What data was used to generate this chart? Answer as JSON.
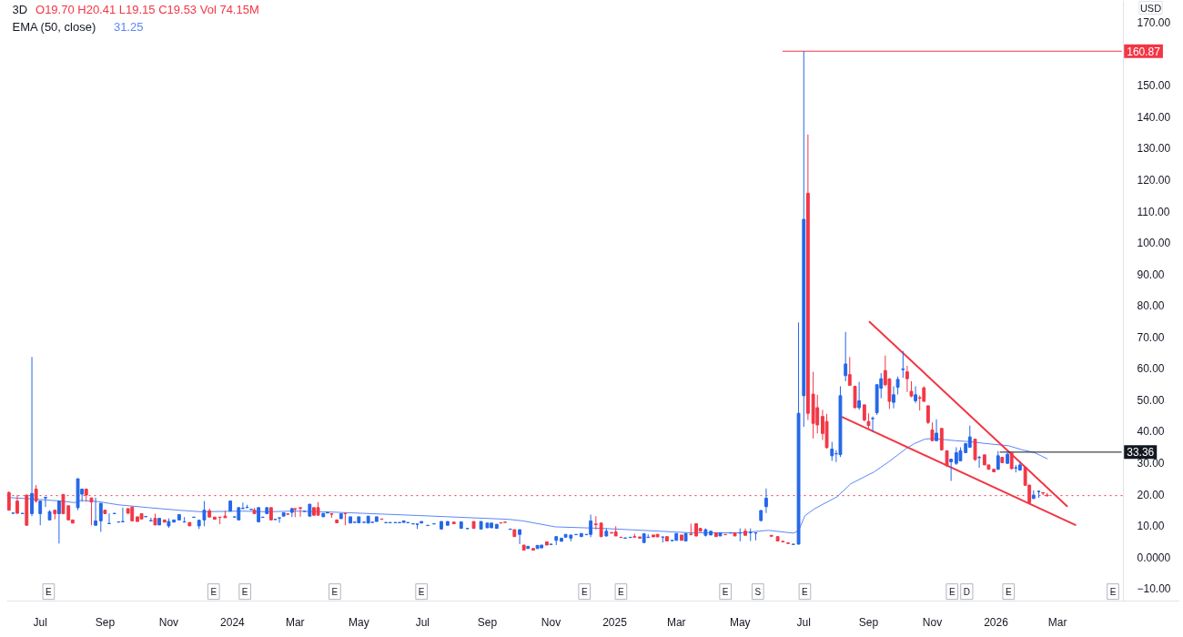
{
  "chart_data": {
    "type": "candlestick",
    "title": "3D",
    "subtitle": "O19.70 H20.41 L19.15 C19.53 Vol 74.15M",
    "ylabel": "USD",
    "legend": "top left",
    "xlim": [
      "2023-05-30",
      "2026-06-26"
    ],
    "ylim": [
      -14,
      177
    ],
    "xticks": [
      {
        "value": "2023-07-01",
        "label": "Jul"
      },
      {
        "value": "2023-09-01",
        "label": "Sep"
      },
      {
        "value": "2023-11-01",
        "label": "Nov"
      },
      {
        "value": "2024-01-01",
        "label": "2024"
      },
      {
        "value": "2024-03-01",
        "label": "Mar"
      },
      {
        "value": "2024-05-01",
        "label": "May"
      },
      {
        "value": "2024-07-01",
        "label": "Jul"
      },
      {
        "value": "2024-09-01",
        "label": "Sep"
      },
      {
        "value": "2024-11-01",
        "label": "Nov"
      },
      {
        "value": "2025-01-01",
        "label": "2025"
      },
      {
        "value": "2025-03-01",
        "label": "Mar"
      },
      {
        "value": "2025-05-01",
        "label": "May"
      },
      {
        "value": "2025-07-01",
        "label": "Jul"
      },
      {
        "value": "2025-09-01",
        "label": "Sep"
      },
      {
        "value": "2025-11-01",
        "label": "Nov"
      },
      {
        "value": "2026-01-01",
        "label": "2026"
      },
      {
        "value": "2026-03-01",
        "label": "Mar"
      }
    ],
    "yticks": [
      {
        "value": -10,
        "label": "−10.00"
      },
      {
        "value": 0,
        "label": "0.0000"
      },
      {
        "value": 10,
        "label": "10.00"
      },
      {
        "value": 20,
        "label": "20.00"
      },
      {
        "value": 30,
        "label": "30.00"
      },
      {
        "value": 40,
        "label": "40.00"
      },
      {
        "value": 50,
        "label": "50.00"
      },
      {
        "value": 60,
        "label": "60.00"
      },
      {
        "value": 70,
        "label": "70.00"
      },
      {
        "value": 80,
        "label": "80.00"
      },
      {
        "value": 90,
        "label": "90.00"
      },
      {
        "value": 100,
        "label": "100.00"
      },
      {
        "value": 110,
        "label": "110.00"
      },
      {
        "value": 120,
        "label": "120.00"
      },
      {
        "value": 130,
        "label": "130.00"
      },
      {
        "value": 140,
        "label": "140.00"
      },
      {
        "value": 150,
        "label": "150.00"
      },
      {
        "value": 170,
        "label": "170.00"
      }
    ],
    "x": [
      "2023-06-01",
      "2023-06-05",
      "2023-06-09",
      "2023-06-14",
      "2023-06-18",
      "2023-06-23",
      "2023-06-27",
      "2023-07-01",
      "2023-07-06",
      "2023-07-10",
      "2023-07-15",
      "2023-07-19",
      "2023-07-23",
      "2023-07-28",
      "2023-08-01",
      "2023-08-06",
      "2023-08-10",
      "2023-08-14",
      "2023-08-19",
      "2023-08-23",
      "2023-08-28",
      "2023-09-01",
      "2023-09-05",
      "2023-09-10",
      "2023-09-14",
      "2023-09-18",
      "2023-09-23",
      "2023-09-27",
      "2023-10-02",
      "2023-10-06",
      "2023-10-10",
      "2023-10-15",
      "2023-10-19",
      "2023-10-23",
      "2023-10-28",
      "2023-11-01",
      "2023-11-06",
      "2023-11-11",
      "2023-11-16",
      "2023-11-21",
      "2023-11-25",
      "2023-11-30",
      "2023-12-05",
      "2023-12-10",
      "2023-12-15",
      "2023-12-20",
      "2023-12-25",
      "2023-12-30",
      "2024-01-03",
      "2024-01-07",
      "2024-01-11",
      "2024-01-15",
      "2024-01-19",
      "2024-01-22",
      "2024-01-26",
      "2024-01-30",
      "2024-02-03",
      "2024-02-07",
      "2024-02-11",
      "2024-02-15",
      "2024-02-19",
      "2024-02-23",
      "2024-02-27",
      "2024-03-01",
      "2024-03-06",
      "2024-03-10",
      "2024-03-15",
      "2024-03-19",
      "2024-03-23",
      "2024-03-28",
      "2024-04-01",
      "2024-04-05",
      "2024-04-10",
      "2024-04-14",
      "2024-04-18",
      "2024-04-23",
      "2024-04-27",
      "2024-05-01",
      "2024-05-06",
      "2024-05-10",
      "2024-05-14",
      "2024-05-18",
      "2024-05-23",
      "2024-05-27",
      "2024-05-31",
      "2024-06-05",
      "2024-06-09",
      "2024-06-13",
      "2024-06-17",
      "2024-06-22",
      "2024-06-26",
      "2024-06-30",
      "2024-07-06",
      "2024-07-12",
      "2024-07-19",
      "2024-07-25",
      "2024-07-31",
      "2024-08-07",
      "2024-08-13",
      "2024-08-19",
      "2024-08-26",
      "2024-09-01",
      "2024-09-05",
      "2024-09-10",
      "2024-09-14",
      "2024-09-18",
      "2024-09-23",
      "2024-09-27",
      "2024-10-02",
      "2024-10-06",
      "2024-10-10",
      "2024-10-15",
      "2024-10-19",
      "2024-10-23",
      "2024-10-28",
      "2024-11-01",
      "2024-11-06",
      "2024-11-11",
      "2024-11-15",
      "2024-11-20",
      "2024-11-25",
      "2024-11-30",
      "2024-12-05",
      "2024-12-09",
      "2024-12-14",
      "2024-12-19",
      "2024-12-24",
      "2024-12-29",
      "2025-01-02",
      "2025-01-07",
      "2025-01-11",
      "2025-01-16",
      "2025-01-20",
      "2025-01-25",
      "2025-01-29",
      "2025-02-02",
      "2025-02-07",
      "2025-02-11",
      "2025-02-16",
      "2025-02-20",
      "2025-02-25",
      "2025-03-01",
      "2025-03-06",
      "2025-03-10",
      "2025-03-15",
      "2025-03-20",
      "2025-03-24",
      "2025-03-29",
      "2025-04-03",
      "2025-04-08",
      "2025-04-12",
      "2025-04-17",
      "2025-04-22",
      "2025-04-26",
      "2025-05-01",
      "2025-05-06",
      "2025-05-11",
      "2025-05-16",
      "2025-05-21",
      "2025-05-26",
      "2025-05-31",
      "2025-06-06",
      "2025-06-11",
      "2025-06-16",
      "2025-06-21",
      "2025-06-26",
      "2025-07-01",
      "2025-07-05",
      "2025-07-10",
      "2025-07-14",
      "2025-07-19",
      "2025-07-23",
      "2025-07-28",
      "2025-08-01",
      "2025-08-05",
      "2025-08-10",
      "2025-08-14",
      "2025-08-19",
      "2025-08-23",
      "2025-08-28",
      "2025-09-01",
      "2025-09-05",
      "2025-09-09",
      "2025-09-13",
      "2025-09-17",
      "2025-09-21",
      "2025-09-25",
      "2025-09-29",
      "2025-10-04",
      "2025-10-08",
      "2025-10-12",
      "2025-10-16",
      "2025-10-20",
      "2025-10-24",
      "2025-10-28",
      "2025-11-01",
      "2025-11-05",
      "2025-11-10",
      "2025-11-15",
      "2025-11-19",
      "2025-11-24",
      "2025-11-28",
      "2025-12-03",
      "2025-12-07",
      "2025-12-12",
      "2025-12-16",
      "2025-12-21",
      "2025-12-25",
      "2025-12-30",
      "2026-01-03",
      "2026-01-07",
      "2026-01-12",
      "2026-01-16",
      "2026-01-20",
      "2026-01-24",
      "2026-01-29",
      "2026-02-02",
      "2026-02-06",
      "2026-02-11",
      "2026-02-15",
      "2026-02-19"
    ],
    "ohlc": [
      [
        20.5,
        20.9,
        14.9,
        14.9
      ],
      [
        13.9,
        14.0,
        13.8,
        14.0
      ],
      [
        17.8,
        19.7,
        13.9,
        13.9
      ],
      [
        13.8,
        14.0,
        13.8,
        13.9
      ],
      [
        19.7,
        19.8,
        10.1,
        10.1
      ],
      [
        13.8,
        63.6,
        13.0,
        20.2
      ],
      [
        21.6,
        22.9,
        17.3,
        17.8
      ],
      [
        13.8,
        17.8,
        10.1,
        17.8
      ],
      [
        18.8,
        19.0,
        15.9,
        19.0
      ],
      [
        11.8,
        14.9,
        11.8,
        14.4
      ],
      [
        14.9,
        14.9,
        12.0,
        13.8
      ],
      [
        13.8,
        17.8,
        4.3,
        17.8
      ],
      [
        19.9,
        19.9,
        13.8,
        13.8
      ],
      [
        16.3,
        16.3,
        11.8,
        11.8
      ],
      [
        11.8,
        11.8,
        10.8,
        10.8
      ],
      [
        15.7,
        24.9,
        14.9,
        24.9
      ],
      [
        20.0,
        21.6,
        17.6,
        21.6
      ],
      [
        21.6,
        21.6,
        17.6,
        19.7
      ],
      [
        18.8,
        18.8,
        10.1,
        17.5
      ],
      [
        10.1,
        18.9,
        10.1,
        11.5
      ],
      [
        11.5,
        17.1,
        8.0,
        17.1
      ],
      [
        14.9,
        14.9,
        13.8,
        13.8
      ],
      [
        10.6,
        13.9,
        10.6,
        10.7
      ],
      [
        13.8,
        13.9,
        13.8,
        13.9
      ],
      [
        11.1,
        11.2,
        11.1,
        11.2
      ],
      [
        11.2,
        15.7,
        11.2,
        11.3
      ],
      [
        15.4,
        15.4,
        13.9,
        13.9
      ],
      [
        15.9,
        15.9,
        11.5,
        11.5
      ],
      [
        12.8,
        12.8,
        11.3,
        11.3
      ],
      [
        13.8,
        13.8,
        12.1,
        12.1
      ],
      [
        12.8,
        12.9,
        12.8,
        12.9
      ],
      [
        11.5,
        12.5,
        11.5,
        11.6
      ],
      [
        12.3,
        13.8,
        10.2,
        10.2
      ],
      [
        10.2,
        12.3,
        10.2,
        12.3
      ],
      [
        11.8,
        11.8,
        11.1,
        11.1
      ],
      [
        9.9,
        12.3,
        9.3,
        11.3
      ],
      [
        11.1,
        11.8,
        11.1,
        11.8
      ],
      [
        11.8,
        13.5,
        11.8,
        13.5
      ],
      [
        11.1,
        12.7,
        11.1,
        11.2
      ],
      [
        11.0,
        11.0,
        9.9,
        9.9
      ],
      [
        12.6,
        12.7,
        12.6,
        12.7
      ],
      [
        9.9,
        11.7,
        8.9,
        11.7
      ],
      [
        11.8,
        17.8,
        9.8,
        14.9
      ],
      [
        14.7,
        15.4,
        12.7,
        12.7
      ],
      [
        12.7,
        12.7,
        12.0,
        12.0
      ],
      [
        12.7,
        12.7,
        10.4,
        12.6
      ],
      [
        13.0,
        14.7,
        12.5,
        12.5
      ],
      [
        14.6,
        17.8,
        14.6,
        17.8
      ],
      [
        12.7,
        12.8,
        12.7,
        12.8
      ],
      [
        11.8,
        15.7,
        11.8,
        15.7
      ],
      [
        15.4,
        17.3,
        15.4,
        15.5
      ],
      [
        15.7,
        16.6,
        15.7,
        15.8
      ],
      [
        15.1,
        15.2,
        15.1,
        15.2
      ],
      [
        14.9,
        15.6,
        13.8,
        13.8
      ],
      [
        11.2,
        15.7,
        11.2,
        15.7
      ],
      [
        12.6,
        12.7,
        12.6,
        12.7
      ],
      [
        13.8,
        15.7,
        13.8,
        15.7
      ],
      [
        15.7,
        15.7,
        11.8,
        11.8
      ],
      [
        11.9,
        12.0,
        11.9,
        12.0
      ],
      [
        12.4,
        12.5,
        10.9,
        12.5
      ],
      [
        13.0,
        14.1,
        13.0,
        14.1
      ],
      [
        13.7,
        13.7,
        13.6,
        13.6
      ],
      [
        14.2,
        15.7,
        12.7,
        15.4
      ],
      [
        15.4,
        15.4,
        12.7,
        15.2
      ],
      [
        15.7,
        15.7,
        12.8,
        15.5
      ],
      [
        14.5,
        14.6,
        14.5,
        14.6
      ],
      [
        13.0,
        16.8,
        13.0,
        16.8
      ],
      [
        15.7,
        15.7,
        13.3,
        13.3
      ],
      [
        15.7,
        17.5,
        13.3,
        13.3
      ],
      [
        12.8,
        13.9,
        12.8,
        13.9
      ],
      [
        14.0,
        14.2,
        14.0,
        14.2
      ],
      [
        13.8,
        13.8,
        12.5,
        13.6
      ],
      [
        11.8,
        11.8,
        10.9,
        10.9
      ],
      [
        12.2,
        13.8,
        12.2,
        13.8
      ],
      [
        13.9,
        13.9,
        10.1,
        13.8
      ],
      [
        10.8,
        12.8,
        10.8,
        12.8
      ],
      [
        11.0,
        11.1,
        11.0,
        11.1
      ],
      [
        10.9,
        12.8,
        10.9,
        12.8
      ],
      [
        11.0,
        11.1,
        11.0,
        11.1
      ],
      [
        10.8,
        13.0,
        10.8,
        13.0
      ],
      [
        11.0,
        11.1,
        11.0,
        11.1
      ],
      [
        11.3,
        12.8,
        11.3,
        12.8
      ],
      [
        12.1,
        12.1,
        12.0,
        12.0
      ],
      [
        10.9,
        11.0,
        10.9,
        11.0
      ],
      [
        10.9,
        11.0,
        10.9,
        11.0
      ],
      [
        10.9,
        11.0,
        10.9,
        11.0
      ],
      [
        10.9,
        11.0,
        10.9,
        11.0
      ],
      [
        11.0,
        11.5,
        11.0,
        11.5
      ],
      [
        10.9,
        11.0,
        10.9,
        11.0
      ],
      [
        10.5,
        10.6,
        10.5,
        10.6
      ],
      [
        10.4,
        10.5,
        8.9,
        10.5
      ],
      [
        10.8,
        11.3,
        10.8,
        11.3
      ],
      [
        10.0,
        10.1,
        10.0,
        10.1
      ],
      [
        10.5,
        10.6,
        10.5,
        10.6
      ],
      [
        8.9,
        11.3,
        8.9,
        11.3
      ],
      [
        10.1,
        11.3,
        10.1,
        11.3
      ],
      [
        11.1,
        11.1,
        10.6,
        10.6
      ],
      [
        9.1,
        11.2,
        9.1,
        11.2
      ],
      [
        9.0,
        9.1,
        9.0,
        9.1
      ],
      [
        11.3,
        11.3,
        9.1,
        9.1
      ],
      [
        8.9,
        11.3,
        8.9,
        11.3
      ],
      [
        9.3,
        10.8,
        9.3,
        10.8
      ],
      [
        9.3,
        10.8,
        9.3,
        10.8
      ],
      [
        9.1,
        10.4,
        9.1,
        10.4
      ],
      [
        10.9,
        10.9,
        10.8,
        10.8
      ],
      [
        11.1,
        11.1,
        11.0,
        11.0
      ],
      [
        8.8,
        8.9,
        8.8,
        8.9
      ],
      [
        8.7,
        8.7,
        6.5,
        6.5
      ],
      [
        7.2,
        8.7,
        4.1,
        8.7
      ],
      [
        3.8,
        3.8,
        2.2,
        2.2
      ],
      [
        2.7,
        3.4,
        2.7,
        3.4
      ],
      [
        2.7,
        2.7,
        2.2,
        2.2
      ],
      [
        2.7,
        3.7,
        2.7,
        3.7
      ],
      [
        2.9,
        3.8,
        2.9,
        3.8
      ],
      [
        4.8,
        4.8,
        3.8,
        3.8
      ],
      [
        4.0,
        4.1,
        4.0,
        4.1
      ],
      [
        5.3,
        6.5,
        3.8,
        6.5
      ],
      [
        5.0,
        6.0,
        5.0,
        6.0
      ],
      [
        6.3,
        7.2,
        6.3,
        7.2
      ],
      [
        6.0,
        7.0,
        5.0,
        7.0
      ],
      [
        7.1,
        7.2,
        7.1,
        7.2
      ],
      [
        6.5,
        7.5,
        6.5,
        7.5
      ],
      [
        7.1,
        7.2,
        7.1,
        7.2
      ],
      [
        7.2,
        13.5,
        6.3,
        11.5
      ],
      [
        10.5,
        13.0,
        8.7,
        10.3
      ],
      [
        10.8,
        10.8,
        6.3,
        6.5
      ],
      [
        6.7,
        9.1,
        6.5,
        8.2
      ],
      [
        7.8,
        7.8,
        7.6,
        7.6
      ],
      [
        8.0,
        9.8,
        6.7,
        6.7
      ],
      [
        6.3,
        6.3,
        6.2,
        6.2
      ],
      [
        6.0,
        6.1,
        6.0,
        6.1
      ],
      [
        6.2,
        6.3,
        6.2,
        6.3
      ],
      [
        6.5,
        7.4,
        6.3,
        6.3
      ],
      [
        6.4,
        6.4,
        6.0,
        6.0
      ],
      [
        4.6,
        7.4,
        4.6,
        7.4
      ],
      [
        6.2,
        7.2,
        6.2,
        6.3
      ],
      [
        7.0,
        7.0,
        6.4,
        6.4
      ],
      [
        7.2,
        7.2,
        6.4,
        6.4
      ],
      [
        6.3,
        6.4,
        4.6,
        6.4
      ],
      [
        6.5,
        6.5,
        5.1,
        5.1
      ],
      [
        5.2,
        5.3,
        5.2,
        5.3
      ],
      [
        5.3,
        7.5,
        5.3,
        7.5
      ],
      [
        7.0,
        7.0,
        5.3,
        5.3
      ],
      [
        5.1,
        7.5,
        5.1,
        7.5
      ],
      [
        7.3,
        10.6,
        7.1,
        7.1
      ],
      [
        10.6,
        10.6,
        6.5,
        6.7
      ],
      [
        9.1,
        9.1,
        8.2,
        8.2
      ],
      [
        6.9,
        9.1,
        6.5,
        8.7
      ],
      [
        7.0,
        8.2,
        7.0,
        8.2
      ],
      [
        7.7,
        7.7,
        6.5,
        6.5
      ],
      [
        6.7,
        7.7,
        6.7,
        7.7
      ],
      [
        7.2,
        7.2,
        7.1,
        7.1
      ],
      [
        7.6,
        7.7,
        7.6,
        7.7
      ],
      [
        7.7,
        7.7,
        6.7,
        6.7
      ],
      [
        7.6,
        9.1,
        5.0,
        7.7
      ],
      [
        8.2,
        9.1,
        6.9,
        6.9
      ],
      [
        7.7,
        9.1,
        5.1,
        7.8
      ],
      [
        7.6,
        7.7,
        5.3,
        7.7
      ],
      [
        11.6,
        14.9,
        11.3,
        14.8
      ],
      [
        16.0,
        21.8,
        14.0,
        18.7
      ],
      [
        6.9,
        6.9,
        6.6,
        6.6
      ],
      [
        6.5,
        6.5,
        5.1,
        5.1
      ],
      [
        5.0,
        5.0,
        4.8,
        4.8
      ],
      [
        4.5,
        4.5,
        4.3,
        4.3
      ],
      [
        4.0,
        4.1,
        4.0,
        4.1
      ],
      [
        4.1,
        74.6,
        4.0,
        45.7
      ],
      [
        51.3,
        160.87,
        41.4,
        107.4
      ],
      [
        115.7,
        134.4,
        43.6,
        45.7
      ],
      [
        51.8,
        58.9,
        37.7,
        42.5
      ],
      [
        47.5,
        51.6,
        39.3,
        42.0
      ],
      [
        44.7,
        46.8,
        37.2,
        39.3
      ],
      [
        43.1,
        45.5,
        34.5,
        34.8
      ],
      [
        32.2,
        36.6,
        30.6,
        34.3
      ],
      [
        32.8,
        34.0,
        30.2,
        32.9
      ],
      [
        32.6,
        54.3,
        31.8,
        51.3
      ],
      [
        57.7,
        71.6,
        55.9,
        61.4
      ],
      [
        58.0,
        63.6,
        54.6,
        54.6
      ],
      [
        54.3,
        54.3,
        47.3,
        47.5
      ],
      [
        47.5,
        55.7,
        46.8,
        49.7
      ],
      [
        48.4,
        48.4,
        43.1,
        43.6
      ],
      [
        43.1,
        45.7,
        40.9,
        41.8
      ],
      [
        44.0,
        44.7,
        39.8,
        44.1
      ],
      [
        45.9,
        54.8,
        45.2,
        54.8
      ],
      [
        53.7,
        58.5,
        50.5,
        56.7
      ],
      [
        59.3,
        64.1,
        54.3,
        54.8
      ],
      [
        56.6,
        56.9,
        47.1,
        49.5
      ],
      [
        49.2,
        54.3,
        47.3,
        51.6
      ],
      [
        54.0,
        57.4,
        51.7,
        56.5
      ],
      [
        59.6,
        65.5,
        57.0,
        59.8
      ],
      [
        58.9,
        60.8,
        52.5,
        56.7
      ],
      [
        52.7,
        55.9,
        50.8,
        51.2
      ],
      [
        49.7,
        54.3,
        49.0,
        51.6
      ],
      [
        50.7,
        51.4,
        46.6,
        50.5
      ],
      [
        53.8,
        54.3,
        49.5,
        49.5
      ],
      [
        48.1,
        48.1,
        42.3,
        42.8
      ],
      [
        40.4,
        42.8,
        37.0,
        37.0
      ],
      [
        37.0,
        43.8,
        37.0,
        39.4
      ],
      [
        40.9,
        40.9,
        33.8,
        34.1
      ],
      [
        33.8,
        33.8,
        28.8,
        29.0
      ],
      [
        30.3,
        31.3,
        24.2,
        31.1
      ],
      [
        29.8,
        34.9,
        29.3,
        33.2
      ],
      [
        30.6,
        34.9,
        30.6,
        33.8
      ],
      [
        33.2,
        36.1,
        33.2,
        36.1
      ],
      [
        34.9,
        41.8,
        34.9,
        38.2
      ],
      [
        37.5,
        37.5,
        30.6,
        31.0
      ],
      [
        31.6,
        32.2,
        28.4,
        31.7
      ],
      [
        32.5,
        32.5,
        29.3,
        29.3
      ],
      [
        29.3,
        29.3,
        27.9,
        27.9
      ],
      [
        27.9,
        27.9,
        27.1,
        27.1
      ],
      [
        27.9,
        33.7,
        27.7,
        32.2
      ],
      [
        31.7,
        31.7,
        30.0,
        30.0
      ],
      [
        29.8,
        33.7,
        29.6,
        32.7
      ],
      [
        33.2,
        33.2,
        27.9,
        28.1
      ],
      [
        28.3,
        29.3,
        26.9,
        28.4
      ],
      [
        27.7,
        30.3,
        27.4,
        29.3
      ],
      [
        28.6,
        28.6,
        22.8,
        22.8
      ],
      [
        22.9,
        22.9,
        17.0,
        17.3
      ],
      [
        18.6,
        21.2,
        18.6,
        19.7
      ],
      [
        20.8,
        21.2,
        18.8,
        20.9
      ],
      [
        20.5,
        20.5,
        19.7,
        20.3
      ],
      [
        19.7,
        20.41,
        19.15,
        19.53
      ]
    ],
    "colors": [
      "#f23645",
      "#2467e8",
      "#f23645",
      "#2467e8",
      "#f23645",
      "#2467e8",
      "#f23645",
      "#2467e8",
      "#2467e8",
      "#2467e8",
      "#f23645",
      "#2467e8",
      "#f23645",
      "#f23645",
      "#f23645",
      "#2467e8",
      "#2467e8",
      "#f23645",
      "#f23645",
      "#2467e8",
      "#2467e8",
      "#f23645",
      "#2467e8",
      "#2467e8",
      "#2467e8",
      "#2467e8",
      "#f23645",
      "#f23645",
      "#f23645",
      "#f23645",
      "#2467e8",
      "#2467e8",
      "#f23645",
      "#2467e8",
      "#f23645",
      "#2467e8",
      "#2467e8",
      "#2467e8",
      "#2467e8",
      "#f23645",
      "#2467e8",
      "#2467e8",
      "#2467e8",
      "#f23645",
      "#f23645",
      "#f23645",
      "#f23645",
      "#2467e8",
      "#2467e8",
      "#2467e8",
      "#2467e8",
      "#2467e8",
      "#2467e8",
      "#f23645",
      "#2467e8",
      "#2467e8",
      "#2467e8",
      "#f23645",
      "#2467e8",
      "#2467e8",
      "#2467e8",
      "#f23645",
      "#2467e8",
      "#f23645",
      "#f23645",
      "#2467e8",
      "#2467e8",
      "#f23645",
      "#f23645",
      "#2467e8",
      "#2467e8",
      "#f23645",
      "#f23645",
      "#2467e8",
      "#f23645",
      "#2467e8",
      "#2467e8",
      "#2467e8",
      "#2467e8",
      "#2467e8",
      "#2467e8",
      "#2467e8",
      "#f23645",
      "#2467e8",
      "#2467e8",
      "#2467e8",
      "#2467e8",
      "#2467e8",
      "#2467e8",
      "#2467e8",
      "#2467e8",
      "#2467e8",
      "#2467e8",
      "#2467e8",
      "#2467e8",
      "#2467e8",
      "#f23645",
      "#2467e8",
      "#2467e8",
      "#f23645",
      "#2467e8",
      "#2467e8",
      "#2467e8",
      "#2467e8",
      "#f23645",
      "#f23645",
      "#2467e8",
      "#f23645",
      "#2467e8",
      "#f23645",
      "#2467e8",
      "#f23645",
      "#2467e8",
      "#2467e8",
      "#f23645",
      "#2467e8",
      "#2467e8",
      "#2467e8",
      "#2467e8",
      "#2467e8",
      "#2467e8",
      "#2467e8",
      "#2467e8",
      "#2467e8",
      "#f23645",
      "#f23645",
      "#2467e8",
      "#f23645",
      "#f23645",
      "#f23645",
      "#2467e8",
      "#2467e8",
      "#f23645",
      "#f23645",
      "#2467e8",
      "#2467e8",
      "#f23645",
      "#f23645",
      "#2467e8",
      "#f23645",
      "#2467e8",
      "#2467e8",
      "#f23645",
      "#2467e8",
      "#f23645",
      "#f23645",
      "#f23645",
      "#2467e8",
      "#2467e8",
      "#f23645",
      "#2467e8",
      "#f23645",
      "#2467e8",
      "#f23645",
      "#2467e8",
      "#f23645",
      "#2467e8",
      "#2467e8",
      "#2467e8",
      "#2467e8",
      "#f23645",
      "#f23645",
      "#f23645",
      "#f23645",
      "#2467e8",
      "#2467e8",
      "#2467e8",
      "#f23645",
      "#f23645",
      "#f23645",
      "#f23645",
      "#f23645",
      "#2467e8",
      "#2467e8",
      "#2467e8",
      "#2467e8",
      "#f23645",
      "#f23645",
      "#2467e8",
      "#f23645",
      "#f23645",
      "#2467e8",
      "#2467e8",
      "#2467e8",
      "#f23645",
      "#f23645",
      "#2467e8",
      "#2467e8",
      "#2467e8",
      "#f23645",
      "#f23645",
      "#2467e8",
      "#f23645",
      "#f23645",
      "#f23645",
      "#f23645",
      "#2467e8",
      "#f23645",
      "#f23645",
      "#2467e8",
      "#2467e8",
      "#2467e8",
      "#2467e8",
      "#2467e8",
      "#f23645",
      "#2467e8",
      "#f23645",
      "#f23645",
      "#f23645",
      "#2467e8",
      "#f23645",
      "#2467e8",
      "#f23645",
      "#2467e8",
      "#2467e8",
      "#f23645",
      "#f23645",
      "#2467e8",
      "#2467e8",
      "#f23645",
      "#f23645"
    ],
    "series": [
      {
        "type": "line",
        "name": "EMA (50, close)",
        "color": "#5b86f7",
        "x": [
          "2023-06-01",
          "2023-06-22",
          "2023-07-21",
          "2023-08-03",
          "2023-08-09",
          "2023-08-26",
          "2023-09-14",
          "2023-10-13",
          "2023-11-10",
          "2023-12-02",
          "2024-01-10",
          "2024-02-04",
          "2024-02-28",
          "2024-03-28",
          "2024-05-05",
          "2024-06-27",
          "2024-09-21",
          "2024-10-05",
          "2024-11-05",
          "2024-12-21",
          "2025-02-02",
          "2025-03-15",
          "2025-05-02",
          "2025-05-28",
          "2025-06-21",
          "2025-06-26",
          "2025-07-02",
          "2025-07-11",
          "2025-08-02",
          "2025-08-15",
          "2025-09-06",
          "2025-09-20",
          "2025-10-07",
          "2025-10-15",
          "2025-10-25",
          "2025-11-02",
          "2025-11-23",
          "2025-12-07",
          "2025-12-22",
          "2026-01-13",
          "2026-01-26",
          "2026-02-07",
          "2026-02-19"
        ],
        "values": [
          18.9,
          18.5,
          17.8,
          17.3,
          18.0,
          17.6,
          16.6,
          15.7,
          14.9,
          14.4,
          14.6,
          14.4,
          14.6,
          14.4,
          13.9,
          13.2,
          12.0,
          11.5,
          9.6,
          9.1,
          8.4,
          7.7,
          7.7,
          8.5,
          7.6,
          8.3,
          13.1,
          15.3,
          19.2,
          23.3,
          27.0,
          30.2,
          34.5,
          36.1,
          37.5,
          37.7,
          37.0,
          36.7,
          36.1,
          35.4,
          34.1,
          33.2,
          31.25
        ]
      },
      {
        "type": "line",
        "color": "#f23645",
        "x": [
          "2025-09-02",
          "2026-03-10"
        ],
        "values": [
          74.8,
          16.2
        ]
      },
      {
        "type": "line",
        "color": "#f23645",
        "x": [
          "2025-08-07",
          "2026-03-18"
        ],
        "values": [
          44.5,
          10.2
        ]
      },
      {
        "type": "line",
        "color": "#f23645",
        "x": [
          "2025-06-11",
          "2026-05-01"
        ],
        "values": [
          160.87,
          160.87
        ],
        "value_labels": [
          null,
          "160.87"
        ]
      },
      {
        "type": "line",
        "color": "#131722",
        "x": [
          "2026-01-05",
          "2026-05-01"
        ],
        "values": [
          33.36,
          33.36
        ],
        "value_labels": [
          null,
          "33.36"
        ]
      }
    ],
    "ref_lines": [
      {
        "axis": "y",
        "value": 19.53,
        "color": "#f23645",
        "line_style": "dotted"
      }
    ],
    "annotations": [
      "31.25",
      {
        "text": "E",
        "x": "2023-07-09",
        "y": -11
      },
      {
        "text": "E",
        "x": "2023-12-14",
        "y": -11
      },
      {
        "text": "E",
        "x": "2024-01-13",
        "y": -11
      },
      {
        "text": "E",
        "x": "2024-04-08",
        "y": -11
      },
      {
        "text": "E",
        "x": "2024-06-30",
        "y": -11
      },
      {
        "text": "E",
        "x": "2024-12-03",
        "y": -11
      },
      {
        "text": "E",
        "x": "2025-01-07",
        "y": -11
      },
      {
        "text": "E",
        "x": "2025-04-17",
        "y": -11
      },
      {
        "text": "S",
        "x": "2025-05-18",
        "y": -11
      },
      {
        "text": "E",
        "x": "2025-07-02",
        "y": -11
      },
      {
        "text": "E",
        "x": "2025-11-20",
        "y": -11
      },
      {
        "text": "D",
        "x": "2025-12-04",
        "y": -11
      },
      {
        "text": "E",
        "x": "2026-01-13",
        "y": -11
      },
      {
        "text": "E",
        "x": "2026-04-23",
        "y": -11
      }
    ]
  }
}
